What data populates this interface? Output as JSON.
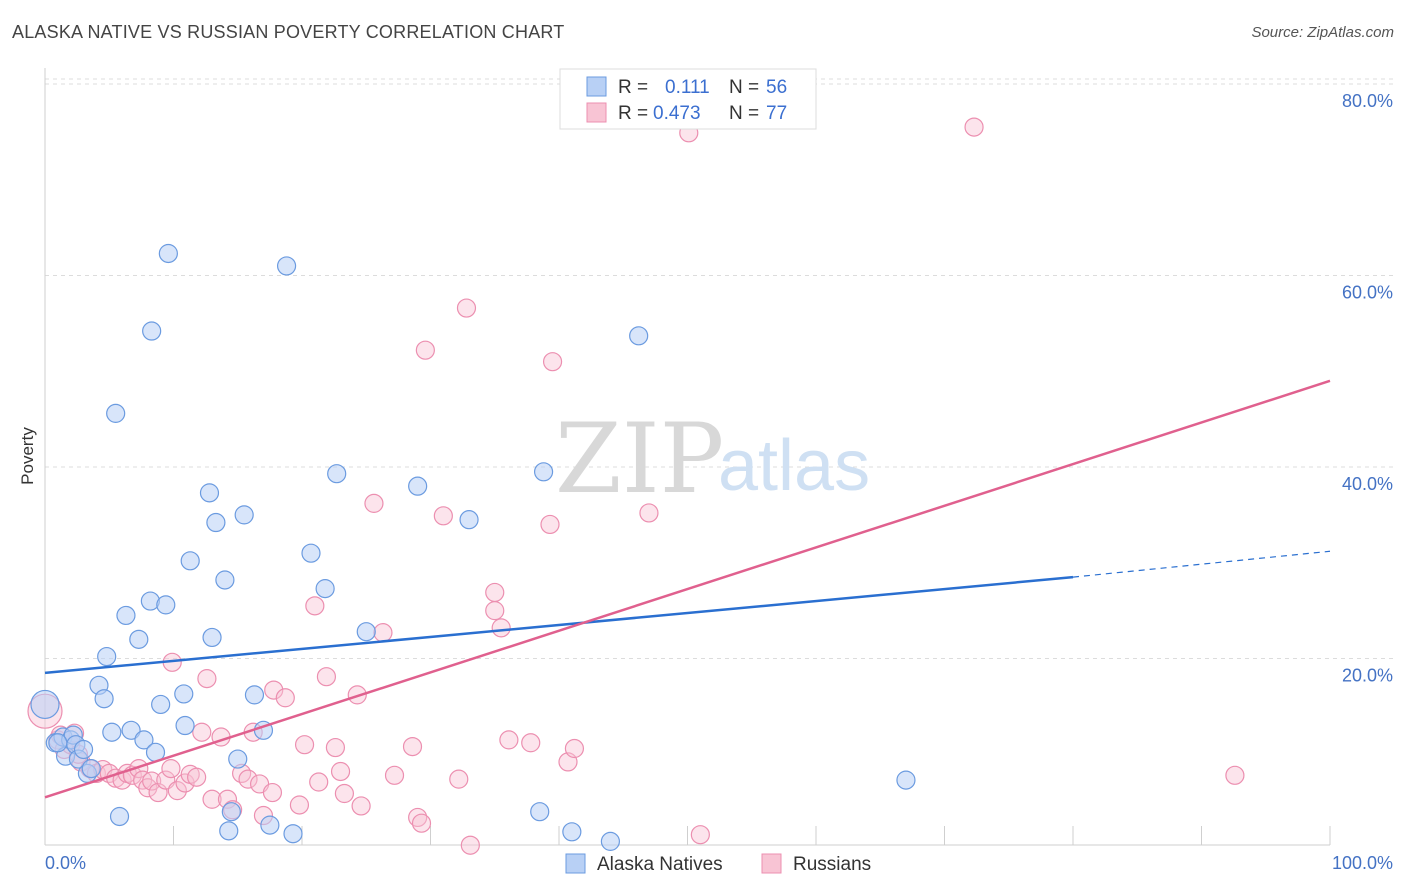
{
  "title": "ALASKA NATIVE VS RUSSIAN POVERTY CORRELATION CHART",
  "source": "Source: ZipAtlas.com",
  "watermark": {
    "left": "ZIP",
    "right": "atlas"
  },
  "colors": {
    "alaska_fill": "#b8d0f5",
    "alaska_stroke": "#6b9be0",
    "alaska_line": "#2a6fd0",
    "russian_fill": "#f8c4d4",
    "russian_stroke": "#ec8fb0",
    "russian_line": "#e0608e",
    "grid": "#dcdcdc",
    "axis_text": "#4472c4"
  },
  "legend": {
    "rows": [
      {
        "r_label": "R =",
        "r_value": "0.111",
        "n_label": "N =",
        "n_value": "56"
      },
      {
        "r_label": "R =",
        "r_value": "0.473",
        "n_label": "N =",
        "n_value": "77"
      }
    ]
  },
  "bottom_legend": [
    "Alaska Natives",
    "Russians"
  ],
  "chart_data": {
    "type": "scatter",
    "title": "ALASKA NATIVE VS RUSSIAN POVERTY CORRELATION CHART",
    "xlabel": "",
    "ylabel": "Poverty",
    "xlim": [
      0,
      100
    ],
    "ylim": [
      0,
      80
    ],
    "x_tick_labels": [
      "0.0%",
      "100.0%"
    ],
    "y_ticks": [
      20,
      40,
      60,
      80
    ],
    "y_tick_labels": [
      "20.0%",
      "40.0%",
      "60.0%",
      "80.0%"
    ],
    "grid": "horizontal dashed",
    "legend_placement": "top-center",
    "series": [
      {
        "name": "Alaska Natives",
        "R": 0.111,
        "N": 56,
        "trend": {
          "x0": 0,
          "y0": 18.5,
          "x1": 80,
          "y1": 28.5,
          "dashed_to_x": 100,
          "dashed_to_y": 31.2
        },
        "points": [
          [
            0.0,
            15.2
          ],
          [
            0.8,
            11.2
          ],
          [
            1.4,
            11.8
          ],
          [
            1.6,
            9.8
          ],
          [
            2.0,
            11.5
          ],
          [
            2.2,
            12.0
          ],
          [
            2.4,
            11.0
          ],
          [
            2.6,
            9.5
          ],
          [
            3.0,
            10.5
          ],
          [
            3.3,
            8.0
          ],
          [
            3.6,
            8.5
          ],
          [
            4.2,
            17.2
          ],
          [
            4.6,
            15.8
          ],
          [
            4.8,
            20.2
          ],
          [
            5.2,
            12.3
          ],
          [
            5.5,
            45.6
          ],
          [
            5.8,
            3.5
          ],
          [
            6.3,
            24.5
          ],
          [
            6.7,
            12.5
          ],
          [
            7.3,
            22.0
          ],
          [
            7.7,
            11.5
          ],
          [
            8.2,
            26.0
          ],
          [
            8.3,
            54.2
          ],
          [
            8.6,
            10.2
          ],
          [
            9.0,
            15.2
          ],
          [
            9.4,
            25.6
          ],
          [
            9.6,
            62.3
          ],
          [
            10.8,
            16.3
          ],
          [
            10.9,
            13.0
          ],
          [
            11.3,
            30.2
          ],
          [
            12.8,
            37.3
          ],
          [
            13.0,
            22.2
          ],
          [
            13.3,
            34.2
          ],
          [
            14.0,
            28.2
          ],
          [
            14.3,
            2.0
          ],
          [
            14.5,
            4.0
          ],
          [
            15.0,
            9.5
          ],
          [
            15.5,
            35.0
          ],
          [
            16.3,
            16.2
          ],
          [
            17.0,
            12.5
          ],
          [
            17.5,
            2.6
          ],
          [
            18.8,
            61.0
          ],
          [
            19.3,
            1.7
          ],
          [
            20.7,
            31.0
          ],
          [
            21.8,
            27.3
          ],
          [
            22.7,
            39.3
          ],
          [
            25.0,
            22.8
          ],
          [
            29.0,
            38.0
          ],
          [
            33.0,
            34.5
          ],
          [
            38.5,
            4.0
          ],
          [
            38.8,
            39.5
          ],
          [
            41.0,
            1.9
          ],
          [
            44.0,
            0.9
          ],
          [
            46.2,
            53.7
          ],
          [
            67.0,
            7.3
          ],
          [
            1.0,
            11.2
          ]
        ]
      },
      {
        "name": "Russians",
        "R": 0.473,
        "N": 77,
        "trend": {
          "x0": 0,
          "y0": 5.5,
          "x1": 100,
          "y1": 49.0
        },
        "points": [
          [
            0.0,
            14.5
          ],
          [
            1.0,
            11.5
          ],
          [
            1.5,
            10.5
          ],
          [
            2.0,
            11.0
          ],
          [
            2.3,
            12.2
          ],
          [
            2.8,
            9.2
          ],
          [
            3.5,
            8.5
          ],
          [
            4.0,
            8.0
          ],
          [
            4.5,
            8.4
          ],
          [
            5.0,
            8.0
          ],
          [
            5.5,
            7.5
          ],
          [
            6.0,
            7.3
          ],
          [
            6.4,
            8.0
          ],
          [
            6.8,
            7.8
          ],
          [
            7.3,
            8.5
          ],
          [
            7.6,
            7.3
          ],
          [
            8.0,
            6.5
          ],
          [
            8.3,
            7.2
          ],
          [
            8.8,
            6.0
          ],
          [
            9.4,
            7.3
          ],
          [
            9.8,
            8.5
          ],
          [
            9.9,
            19.6
          ],
          [
            10.3,
            6.2
          ],
          [
            10.9,
            7.0
          ],
          [
            11.3,
            7.9
          ],
          [
            11.8,
            7.6
          ],
          [
            12.2,
            12.3
          ],
          [
            12.6,
            17.9
          ],
          [
            13.0,
            5.3
          ],
          [
            13.7,
            11.8
          ],
          [
            14.2,
            5.3
          ],
          [
            14.6,
            4.2
          ],
          [
            15.3,
            8.0
          ],
          [
            15.8,
            7.4
          ],
          [
            16.2,
            12.3
          ],
          [
            16.7,
            6.9
          ],
          [
            17.0,
            3.6
          ],
          [
            17.7,
            6.0
          ],
          [
            17.8,
            16.7
          ],
          [
            18.7,
            15.9
          ],
          [
            19.8,
            4.7
          ],
          [
            20.2,
            11.0
          ],
          [
            21.0,
            25.5
          ],
          [
            21.3,
            7.1
          ],
          [
            21.9,
            18.1
          ],
          [
            22.6,
            10.7
          ],
          [
            23.0,
            8.2
          ],
          [
            23.3,
            5.9
          ],
          [
            24.3,
            16.2
          ],
          [
            24.6,
            4.6
          ],
          [
            25.6,
            36.2
          ],
          [
            26.3,
            22.7
          ],
          [
            27.2,
            7.8
          ],
          [
            28.6,
            10.8
          ],
          [
            29.0,
            3.4
          ],
          [
            29.3,
            2.8
          ],
          [
            29.6,
            52.2
          ],
          [
            31.0,
            34.9
          ],
          [
            32.2,
            7.4
          ],
          [
            32.8,
            56.6
          ],
          [
            33.1,
            0.5
          ],
          [
            35.0,
            26.9
          ],
          [
            35.0,
            25.0
          ],
          [
            35.5,
            23.2
          ],
          [
            36.1,
            11.5
          ],
          [
            37.8,
            11.2
          ],
          [
            39.3,
            34.0
          ],
          [
            39.5,
            51.0
          ],
          [
            40.7,
            9.2
          ],
          [
            41.2,
            10.6
          ],
          [
            47.0,
            35.2
          ],
          [
            50.1,
            74.9
          ],
          [
            51.0,
            1.6
          ],
          [
            72.3,
            75.5
          ],
          [
            92.6,
            7.8
          ],
          [
            1.2,
            12.0
          ],
          [
            2.6,
            10.0
          ]
        ]
      }
    ]
  }
}
